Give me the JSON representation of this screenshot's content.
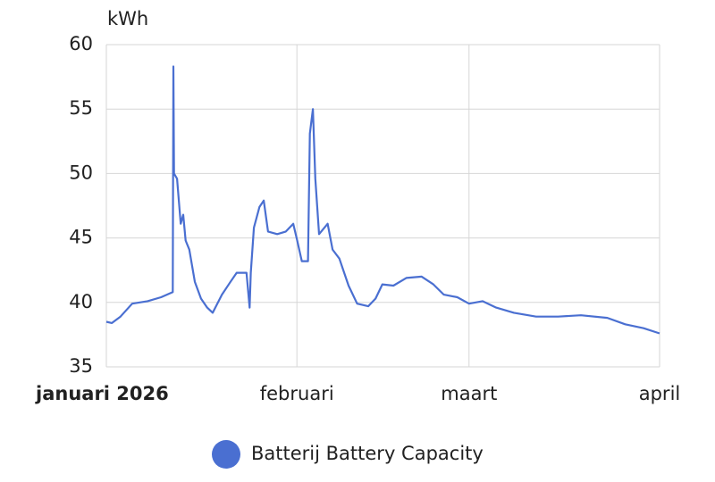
{
  "chart_data": {
    "type": "line",
    "y_unit": "kWh",
    "x": [
      0,
      0.9,
      2.3,
      4.2,
      6.7,
      8.9,
      10.8,
      10.9,
      11.0,
      11.5,
      12.1,
      12.5,
      12.9,
      13.5,
      14.4,
      15.4,
      16.4,
      17.3,
      18.8,
      20.2,
      21.2,
      22.8,
      23.3,
      23.5,
      24.0,
      24.9,
      25.6,
      26.3,
      27.8,
      29.2,
      30.4,
      31.0,
      31.8,
      32.8,
      33.1,
      33.6,
      34.0,
      34.6,
      36.0,
      36.8,
      37.9,
      39.4,
      40.8,
      42.6,
      43.8,
      44.9,
      46.7,
      48.8,
      51.3,
      53.2,
      54.9,
      57.1,
      59.0,
      61.2,
      63.4,
      66.3,
      69.9,
      73.5,
      77.2,
      81.5,
      84.4,
      87.4,
      90.0
    ],
    "series": [
      {
        "name": "Batterij Battery Capacity",
        "color": "#4a6fd1",
        "values": [
          38.5,
          38.4,
          38.9,
          39.9,
          40.1,
          40.4,
          40.8,
          58.3,
          50.0,
          49.6,
          46.1,
          46.8,
          44.8,
          44.1,
          41.6,
          40.3,
          39.6,
          39.2,
          40.6,
          41.6,
          42.3,
          42.3,
          39.6,
          42.3,
          45.8,
          47.4,
          47.9,
          45.5,
          45.3,
          45.5,
          46.1,
          44.9,
          43.2,
          43.2,
          53.1,
          55.0,
          49.6,
          45.3,
          46.1,
          44.1,
          43.4,
          41.3,
          39.9,
          39.7,
          40.3,
          41.4,
          41.3,
          41.9,
          42.0,
          41.4,
          40.6,
          40.4,
          39.9,
          40.1,
          39.6,
          39.2,
          38.9,
          38.9,
          39.0,
          38.8,
          38.3,
          38.0,
          37.6
        ]
      }
    ],
    "xlim": [
      0,
      90
    ],
    "xticks": [
      {
        "value": 0,
        "label": "januari 2026"
      },
      {
        "value": 31,
        "label": "februari"
      },
      {
        "value": 59,
        "label": "maart"
      },
      {
        "value": 90,
        "label": "april"
      }
    ],
    "ylim": [
      35,
      60
    ],
    "yticks": [
      35,
      40,
      45,
      50,
      55,
      60
    ],
    "grid": true
  }
}
